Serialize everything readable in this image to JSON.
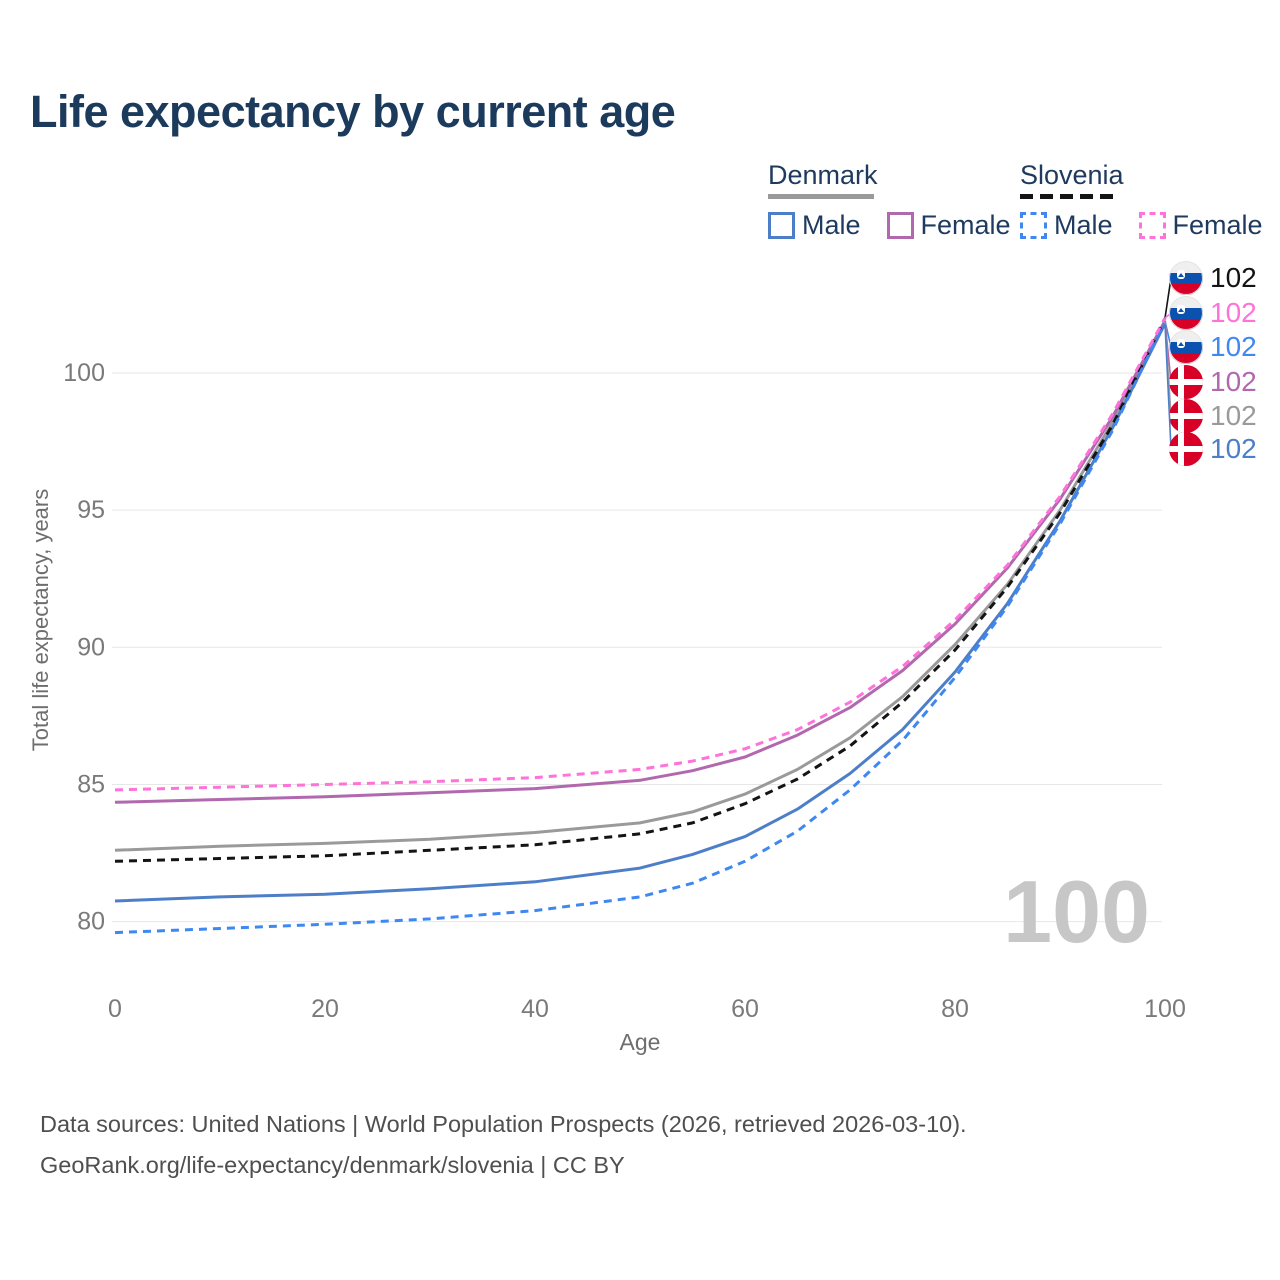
{
  "page": {
    "title": "Life expectancy by current age"
  },
  "legend": {
    "groups": [
      {
        "id": "denmark",
        "label": "Denmark",
        "line_style": "solid",
        "underline_color": "#9a9a9a",
        "items": [
          {
            "id": "dk-male",
            "label": "Male",
            "color": "#4d7ec8",
            "dashed": false
          },
          {
            "id": "dk-female",
            "label": "Female",
            "color": "#b168ae",
            "dashed": false
          }
        ]
      },
      {
        "id": "slovenia",
        "label": "Slovenia",
        "line_style": "dashed",
        "underline_color": "#141414",
        "items": [
          {
            "id": "si-male",
            "label": "Male",
            "color": "#3f88f2",
            "dashed": true
          },
          {
            "id": "si-female",
            "label": "Female",
            "color": "#ff72da",
            "dashed": true
          }
        ]
      }
    ]
  },
  "chart_data": {
    "type": "line",
    "title": "Life expectancy by current age",
    "xlabel": "Age",
    "ylabel": "Total life expectancy, years",
    "xlim": [
      0,
      100
    ],
    "ylim": [
      78.5,
      103
    ],
    "xticks": [
      0,
      20,
      40,
      60,
      80,
      100
    ],
    "yticks": [
      80,
      85,
      90,
      95,
      100
    ],
    "grid": "horizontal-only",
    "legend_position": "top-right",
    "watermark": "100",
    "x": [
      0,
      10,
      20,
      30,
      40,
      50,
      55,
      60,
      65,
      70,
      75,
      80,
      85,
      90,
      95,
      100
    ],
    "series": [
      {
        "id": "dk-overall",
        "name": "Denmark (both sexes)",
        "country": "Denmark",
        "flag": "denmark",
        "color": "#9a9a9a",
        "dashed": false,
        "values": [
          82.6,
          82.75,
          82.85,
          83.0,
          83.25,
          83.6,
          84.0,
          84.65,
          85.55,
          86.7,
          88.2,
          90.1,
          92.3,
          95.0,
          98.2,
          101.85
        ]
      },
      {
        "id": "dk-female",
        "name": "Denmark Female",
        "country": "Denmark",
        "flag": "denmark",
        "color": "#b168ae",
        "dashed": false,
        "values": [
          84.35,
          84.45,
          84.55,
          84.7,
          84.85,
          85.15,
          85.5,
          86.0,
          86.8,
          87.8,
          89.15,
          90.85,
          92.9,
          95.4,
          98.4,
          101.9
        ]
      },
      {
        "id": "dk-male",
        "name": "Denmark Male",
        "country": "Denmark",
        "flag": "denmark",
        "color": "#4d7ec8",
        "dashed": false,
        "values": [
          80.75,
          80.9,
          81.0,
          81.2,
          81.45,
          81.95,
          82.45,
          83.1,
          84.1,
          85.4,
          87.0,
          89.1,
          91.6,
          94.6,
          98.0,
          101.8
        ]
      },
      {
        "id": "si-overall",
        "name": "Slovenia (both sexes)",
        "country": "Slovenia",
        "flag": "slovenia",
        "color": "#141414",
        "dashed": true,
        "values": [
          82.2,
          82.3,
          82.4,
          82.6,
          82.8,
          83.2,
          83.6,
          84.3,
          85.2,
          86.4,
          88.0,
          89.9,
          92.2,
          94.9,
          98.1,
          102.0
        ]
      },
      {
        "id": "si-male",
        "name": "Slovenia Male",
        "country": "Slovenia",
        "flag": "slovenia",
        "color": "#3f88f2",
        "dashed": true,
        "values": [
          79.6,
          79.75,
          79.9,
          80.1,
          80.4,
          80.9,
          81.4,
          82.2,
          83.3,
          84.8,
          86.6,
          88.9,
          91.5,
          94.5,
          97.9,
          101.9
        ]
      },
      {
        "id": "si-female",
        "name": "Slovenia Female",
        "country": "Slovenia",
        "flag": "slovenia",
        "color": "#ff72da",
        "dashed": true,
        "values": [
          84.8,
          84.9,
          85.0,
          85.1,
          85.25,
          85.55,
          85.85,
          86.3,
          87.0,
          88.0,
          89.3,
          91.0,
          93.0,
          95.5,
          98.5,
          102.0
        ]
      }
    ],
    "end_labels": [
      {
        "series": "si-overall",
        "flag": "slovenia",
        "text": "102",
        "color": "#141414"
      },
      {
        "series": "si-female",
        "flag": "slovenia",
        "text": "102",
        "color": "#ff72da"
      },
      {
        "series": "si-male",
        "flag": "slovenia",
        "text": "102",
        "color": "#3f88f2"
      },
      {
        "series": "dk-female",
        "flag": "denmark",
        "text": "102",
        "color": "#b168ae"
      },
      {
        "series": "dk-overall",
        "flag": "denmark",
        "text": "102",
        "color": "#9a9a9a"
      },
      {
        "series": "dk-male",
        "flag": "denmark",
        "text": "102",
        "color": "#4d7ec8"
      }
    ]
  },
  "footer": {
    "line1": "Data sources: United Nations | World Population Prospects (2026, retrieved 2026-03-10).",
    "line2": "GeoRank.org/life-expectancy/denmark/slovenia | CC BY"
  }
}
